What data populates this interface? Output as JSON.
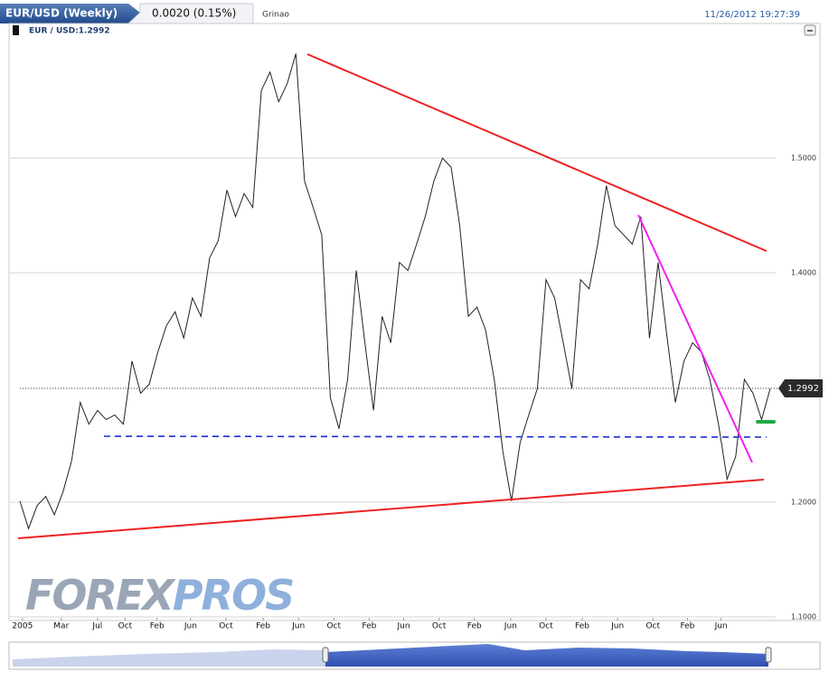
{
  "header": {
    "symbol": "EUR/USD (Weekly)",
    "change": "0.0020 (0.15%)",
    "user": "Grinao",
    "timestamp": "11/26/2012 19:27:39"
  },
  "legend": "EUR / USD:1.2992",
  "logo": [
    "FOREX",
    "PROS"
  ],
  "chart_data": {
    "type": "line",
    "series": [
      {
        "name": "EUR / USD",
        "color": "#222222",
        "values": [
          1.201,
          1.177,
          1.197,
          1.205,
          1.189,
          1.209,
          1.236,
          1.287,
          1.268,
          1.28,
          1.272,
          1.276,
          1.268,
          1.323,
          1.295,
          1.303,
          1.331,
          1.354,
          1.366,
          1.343,
          1.378,
          1.362,
          1.413,
          1.428,
          1.472,
          1.449,
          1.469,
          1.457,
          1.559,
          1.575,
          1.549,
          1.565,
          1.591,
          1.48,
          1.457,
          1.433,
          1.291,
          1.264,
          1.307,
          1.402,
          1.339,
          1.28,
          1.362,
          1.339,
          1.409,
          1.402,
          1.425,
          1.449,
          1.48,
          1.5,
          1.492,
          1.441,
          1.362,
          1.37,
          1.35,
          1.307,
          1.244,
          1.201,
          1.252,
          1.276,
          1.299,
          1.394,
          1.378,
          1.339,
          1.299,
          1.394,
          1.386,
          1.425,
          1.476,
          1.441,
          1.433,
          1.425,
          1.449,
          1.343,
          1.409,
          1.346,
          1.287,
          1.323,
          1.339,
          1.331,
          1.307,
          1.268,
          1.22,
          1.24,
          1.307,
          1.295,
          1.272,
          1.299
        ]
      }
    ],
    "xlim": [
      0,
      87
    ],
    "xticks": [
      {
        "value": 0.3,
        "label": "2005"
      },
      {
        "value": 4.8,
        "label": "Mar"
      },
      {
        "value": 9,
        "label": "Jul"
      },
      {
        "value": 12.2,
        "label": "Oct"
      },
      {
        "value": 15.9,
        "label": "Feb"
      },
      {
        "value": 19.8,
        "label": "Jun"
      },
      {
        "value": 23.9,
        "label": "Oct"
      },
      {
        "value": 28.2,
        "label": "Feb"
      },
      {
        "value": 32.3,
        "label": "Jun"
      },
      {
        "value": 36.4,
        "label": "Oct"
      },
      {
        "value": 40.5,
        "label": "Feb"
      },
      {
        "value": 44.5,
        "label": "Jun"
      },
      {
        "value": 48.6,
        "label": "Oct"
      },
      {
        "value": 52.7,
        "label": "Feb"
      },
      {
        "value": 56.9,
        "label": "Jun"
      },
      {
        "value": 61,
        "label": "Oct"
      },
      {
        "value": 65.2,
        "label": "Feb"
      },
      {
        "value": 69.3,
        "label": "Jun"
      },
      {
        "value": 73.4,
        "label": "Oct"
      },
      {
        "value": 77.4,
        "label": "Feb"
      },
      {
        "value": 81.3,
        "label": "Jun"
      }
    ],
    "ylim": [
      1.1,
      1.6
    ],
    "yticks": [
      {
        "value": 1.1,
        "label": "1.1000"
      },
      {
        "value": 1.2,
        "label": "1.2000"
      },
      {
        "value": 1.4,
        "label": "1.4000"
      },
      {
        "value": 1.5,
        "label": "1.5000"
      }
    ],
    "grid": true,
    "last_price": 1.2992
  }
}
